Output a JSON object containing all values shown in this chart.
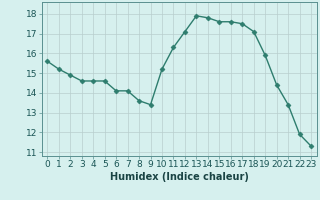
{
  "x": [
    0,
    1,
    2,
    3,
    4,
    5,
    6,
    7,
    8,
    9,
    10,
    11,
    12,
    13,
    14,
    15,
    16,
    17,
    18,
    19,
    20,
    21,
    22,
    23
  ],
  "y": [
    15.6,
    15.2,
    14.9,
    14.6,
    14.6,
    14.6,
    14.1,
    14.1,
    13.6,
    13.4,
    15.2,
    16.3,
    17.1,
    17.9,
    17.8,
    17.6,
    17.6,
    17.5,
    17.1,
    15.9,
    14.4,
    13.4,
    11.9,
    11.3
  ],
  "line_color": "#2e7d6e",
  "marker": "D",
  "marker_size": 2.5,
  "bg_color": "#d6f0ee",
  "grid_color_major": "#b8cece",
  "grid_color_minor": "#cce5e3",
  "xlabel": "Humidex (Indice chaleur)",
  "ylim": [
    10.8,
    18.6
  ],
  "xlim": [
    -0.5,
    23.5
  ],
  "yticks": [
    11,
    12,
    13,
    14,
    15,
    16,
    17,
    18
  ],
  "xticks": [
    0,
    1,
    2,
    3,
    4,
    5,
    6,
    7,
    8,
    9,
    10,
    11,
    12,
    13,
    14,
    15,
    16,
    17,
    18,
    19,
    20,
    21,
    22,
    23
  ],
  "xlabel_fontsize": 7,
  "tick_fontsize": 6.5,
  "line_width": 1.0
}
